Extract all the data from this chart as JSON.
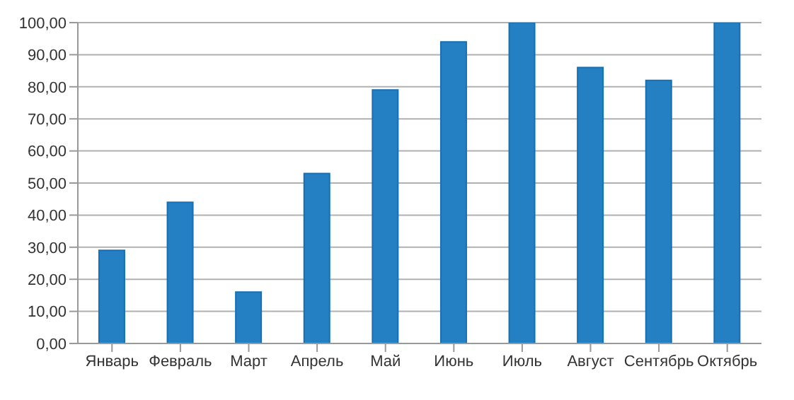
{
  "chart_data": {
    "type": "bar",
    "categories": [
      "Январь",
      "Февраль",
      "Март",
      "Апрель",
      "Май",
      "Июнь",
      "Июль",
      "Август",
      "Сентябрь",
      "Октябрь"
    ],
    "values": [
      29,
      44,
      16,
      53,
      79,
      94,
      100,
      86,
      82,
      100
    ],
    "color": "#2480c3",
    "ylim": [
      0,
      100
    ],
    "yticks": [
      {
        "value": 0,
        "label": "0,00"
      },
      {
        "value": 10,
        "label": "10,00"
      },
      {
        "value": 20,
        "label": "20,00"
      },
      {
        "value": 30,
        "label": "30,00"
      },
      {
        "value": 40,
        "label": "40,00"
      },
      {
        "value": 50,
        "label": "50,00"
      },
      {
        "value": 60,
        "label": "60,00"
      },
      {
        "value": 70,
        "label": "70,00"
      },
      {
        "value": 80,
        "label": "80,00"
      },
      {
        "value": 90,
        "label": "90,00"
      },
      {
        "value": 100,
        "label": "100,00"
      }
    ],
    "grid": "y"
  }
}
